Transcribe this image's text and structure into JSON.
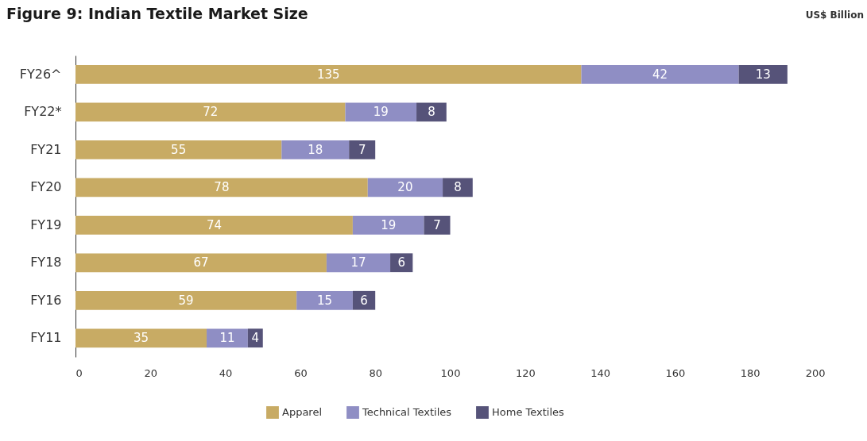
{
  "chart_data": {
    "type": "bar",
    "title": "Figure 9: Indian Textile Market Size",
    "annotations": [
      "US$ Billion"
    ],
    "orientation": "horizontal",
    "stacked": true,
    "categories": [
      "FY26^",
      "FY22*",
      "FY21",
      "FY20",
      "FY19",
      "FY18",
      "FY16",
      "FY11"
    ],
    "series": [
      {
        "name": "Apparel",
        "color": "#c8ab64",
        "values": [
          135,
          72,
          55,
          78,
          74,
          67,
          59,
          35
        ]
      },
      {
        "name": "Technical Textiles",
        "color": "#8f8ec4",
        "values": [
          42,
          19,
          18,
          20,
          19,
          17,
          15,
          11
        ]
      },
      {
        "name": "Home Textiles",
        "color": "#565379",
        "values": [
          13,
          8,
          7,
          8,
          7,
          6,
          6,
          4
        ]
      }
    ],
    "xlim": [
      0,
      200
    ],
    "xticks": [
      0,
      20,
      40,
      60,
      80,
      100,
      120,
      140,
      160,
      180,
      200
    ],
    "grid": false,
    "legend": "bottom",
    "data_labels": true
  }
}
